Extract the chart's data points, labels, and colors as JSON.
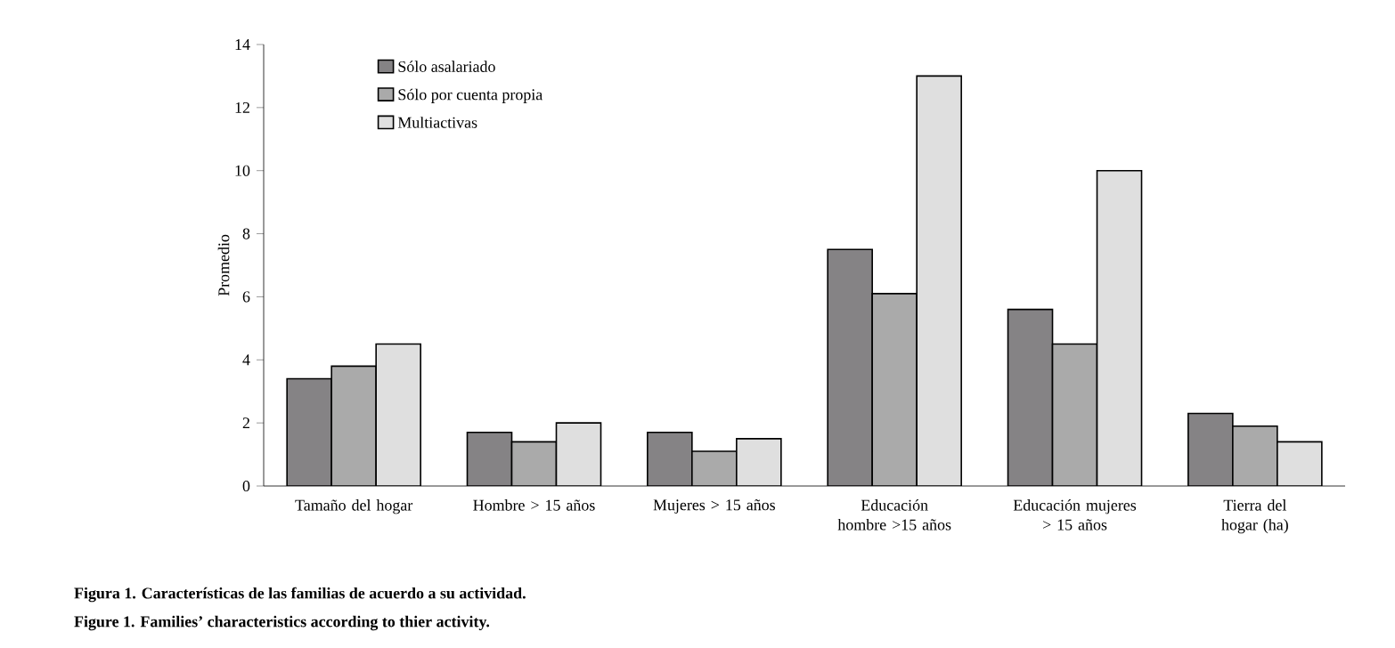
{
  "chart_data": {
    "type": "bar",
    "ylabel": "Promedio",
    "categories": [
      "Tamaño del hogar",
      "Hombre > 15 años",
      "Mujeres > 15 años",
      "Educación hombre >15 años",
      "Educación mujeres > 15 años",
      "Tierra del hogar (ha)"
    ],
    "series": [
      {
        "name": "Sólo asalariado",
        "color": "#858385",
        "values": [
          3.4,
          1.7,
          1.7,
          7.5,
          5.6,
          2.3
        ]
      },
      {
        "name": "Sólo por cuenta propia",
        "color": "#aaaaaa",
        "values": [
          3.8,
          1.4,
          1.1,
          6.1,
          4.5,
          1.9
        ]
      },
      {
        "name": "Multiactivas",
        "color": "#dfdfdf",
        "values": [
          4.5,
          2.0,
          1.5,
          13.0,
          10.0,
          1.4
        ]
      }
    ],
    "ylim": [
      0,
      14
    ],
    "yticks": [
      0,
      2,
      4,
      6,
      8,
      10,
      12,
      14
    ],
    "legend": "top left",
    "grid": false,
    "annotations": [
      "**Figura 1. Características de las familias de acuerdo a su actividad.**",
      "**Figure 1. Families’ characteristics according to thier activity.**"
    ]
  }
}
